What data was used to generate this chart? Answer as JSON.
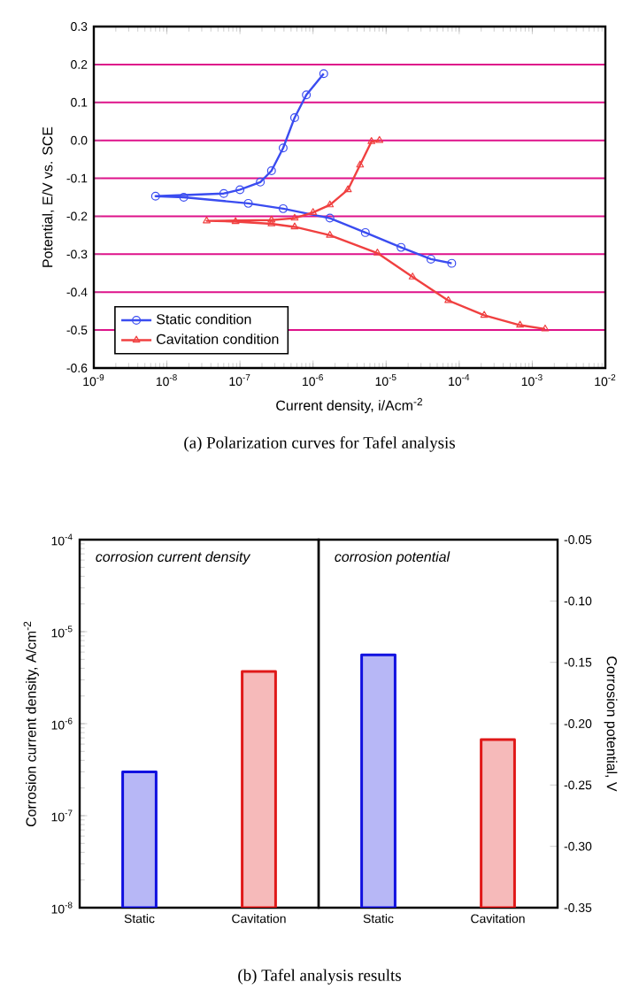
{
  "chart_data": [
    {
      "type": "line",
      "title": "(a) Polarization curves for Tafel analysis",
      "xlabel": "Current density, i/Acm$^{-2}$",
      "ylabel": "Potential, E/V vs. SCE",
      "log": "x",
      "xlim": [
        1e-09,
        0.01
      ],
      "ylim": [
        -0.6,
        0.3
      ],
      "xticks": [
        {
          "value": 1e-09,
          "label": "10$^{-9}$"
        },
        {
          "value": 1e-08,
          "label": "10$^{-8}$"
        },
        {
          "value": 1e-07,
          "label": "10$^{-7}$"
        },
        {
          "value": 1e-06,
          "label": "10$^{-6}$"
        },
        {
          "value": 1e-05,
          "label": "10$^{-5}$"
        },
        {
          "value": 0.0001,
          "label": "10$^{-4}$"
        },
        {
          "value": 0.001,
          "label": "10$^{-3}$"
        },
        {
          "value": 0.01,
          "label": "10$^{-2}$"
        }
      ],
      "yticks": [
        {
          "value": -0.6,
          "label": "-0.6"
        },
        {
          "value": -0.5,
          "label": "-0.5"
        },
        {
          "value": -0.4,
          "label": "-0.4"
        },
        {
          "value": -0.3,
          "label": "-0.3"
        },
        {
          "value": -0.2,
          "label": "-0.2"
        },
        {
          "value": -0.1,
          "label": "-0.1"
        },
        {
          "value": 0,
          "label": "0.0"
        },
        {
          "value": 0.1,
          "label": "0.1"
        },
        {
          "value": 0.2,
          "label": "0.2"
        },
        {
          "value": 0.3,
          "label": "0.3"
        }
      ],
      "grid": "y",
      "legend": "bottom left",
      "line_style": "solid",
      "series": [
        {
          "name": "Static condition",
          "color": "#3a4cf0",
          "marker": "circle",
          "x": [
            7.9e-05,
            4.1e-05,
            1.6e-05,
            5.2e-06,
            1.7e-06,
            3.9e-07,
            1.3e-07,
            1.7e-08,
            7e-09,
            6e-08,
            1e-07,
            1.9e-07,
            2.7e-07,
            3.9e-07,
            5.6e-07,
            8.1e-07,
            1.4e-06
          ],
          "values": [
            -0.324,
            -0.313,
            -0.282,
            -0.243,
            -0.205,
            -0.18,
            -0.166,
            -0.15,
            -0.147,
            -0.14,
            -0.13,
            -0.11,
            -0.08,
            -0.02,
            0.06,
            0.12,
            0.176
          ]
        },
        {
          "name": "Cavitation condition",
          "color": "#f04040",
          "marker": "triangle",
          "x": [
            0.0015,
            0.00068,
            0.00022,
            7.1e-05,
            2.3e-05,
            7.6e-06,
            1.7e-06,
            5.6e-07,
            2.7e-07,
            8.7e-08,
            3.5e-08,
            2.7e-07,
            5.6e-07,
            1e-06,
            1.7e-06,
            3e-06,
            4.4e-06,
            6.3e-06,
            8.1e-06
          ],
          "values": [
            -0.497,
            -0.487,
            -0.461,
            -0.422,
            -0.36,
            -0.297,
            -0.25,
            -0.228,
            -0.22,
            -0.214,
            -0.212,
            -0.21,
            -0.205,
            -0.19,
            -0.17,
            -0.13,
            -0.065,
            -0.003,
            0.0
          ]
        }
      ]
    },
    {
      "type": "bar",
      "title": "(b) Tafel analysis results",
      "categories": [
        "Static",
        "Cavitation"
      ],
      "ylabel": "Corrosion current density, A/cm$^{-2}$",
      "log": "y",
      "ylim": [
        1e-08,
        0.0001
      ],
      "yticks": [
        {
          "value": 1e-08,
          "label": "10$^{-8}$"
        },
        {
          "value": 1e-07,
          "label": "10$^{-7}$"
        },
        {
          "value": 1e-06,
          "label": "10$^{-6}$"
        },
        {
          "value": 1e-05,
          "label": "10$^{-5}$"
        },
        {
          "value": 0.0001,
          "label": "10$^{-4}$"
        }
      ],
      "colors": [
        "#1010e0",
        "#e01818"
      ],
      "values": [
        3e-07,
        3.7e-06
      ],
      "annotations": [
        "corrosion current density"
      ]
    },
    {
      "type": "bar",
      "categories": [
        "Static",
        "Cavitation"
      ],
      "ylabel": "Corrosion potential, V",
      "ylim": [
        -0.35,
        -0.05
      ],
      "yticks": [
        {
          "value": -0.35,
          "label": "-0.35"
        },
        {
          "value": -0.3,
          "label": "-0.30"
        },
        {
          "value": -0.25,
          "label": "-0.25"
        },
        {
          "value": -0.2,
          "label": "-0.20"
        },
        {
          "value": -0.15,
          "label": "-0.15"
        },
        {
          "value": -0.1,
          "label": "-0.10"
        },
        {
          "value": -0.05,
          "label": "-0.05"
        }
      ],
      "colors": [
        "#1010e0",
        "#e01818"
      ],
      "base": [
        -0.35,
        -0.35
      ],
      "values": [
        0.206,
        0.137
      ],
      "annotations": [
        "corrosion potential"
      ]
    }
  ]
}
